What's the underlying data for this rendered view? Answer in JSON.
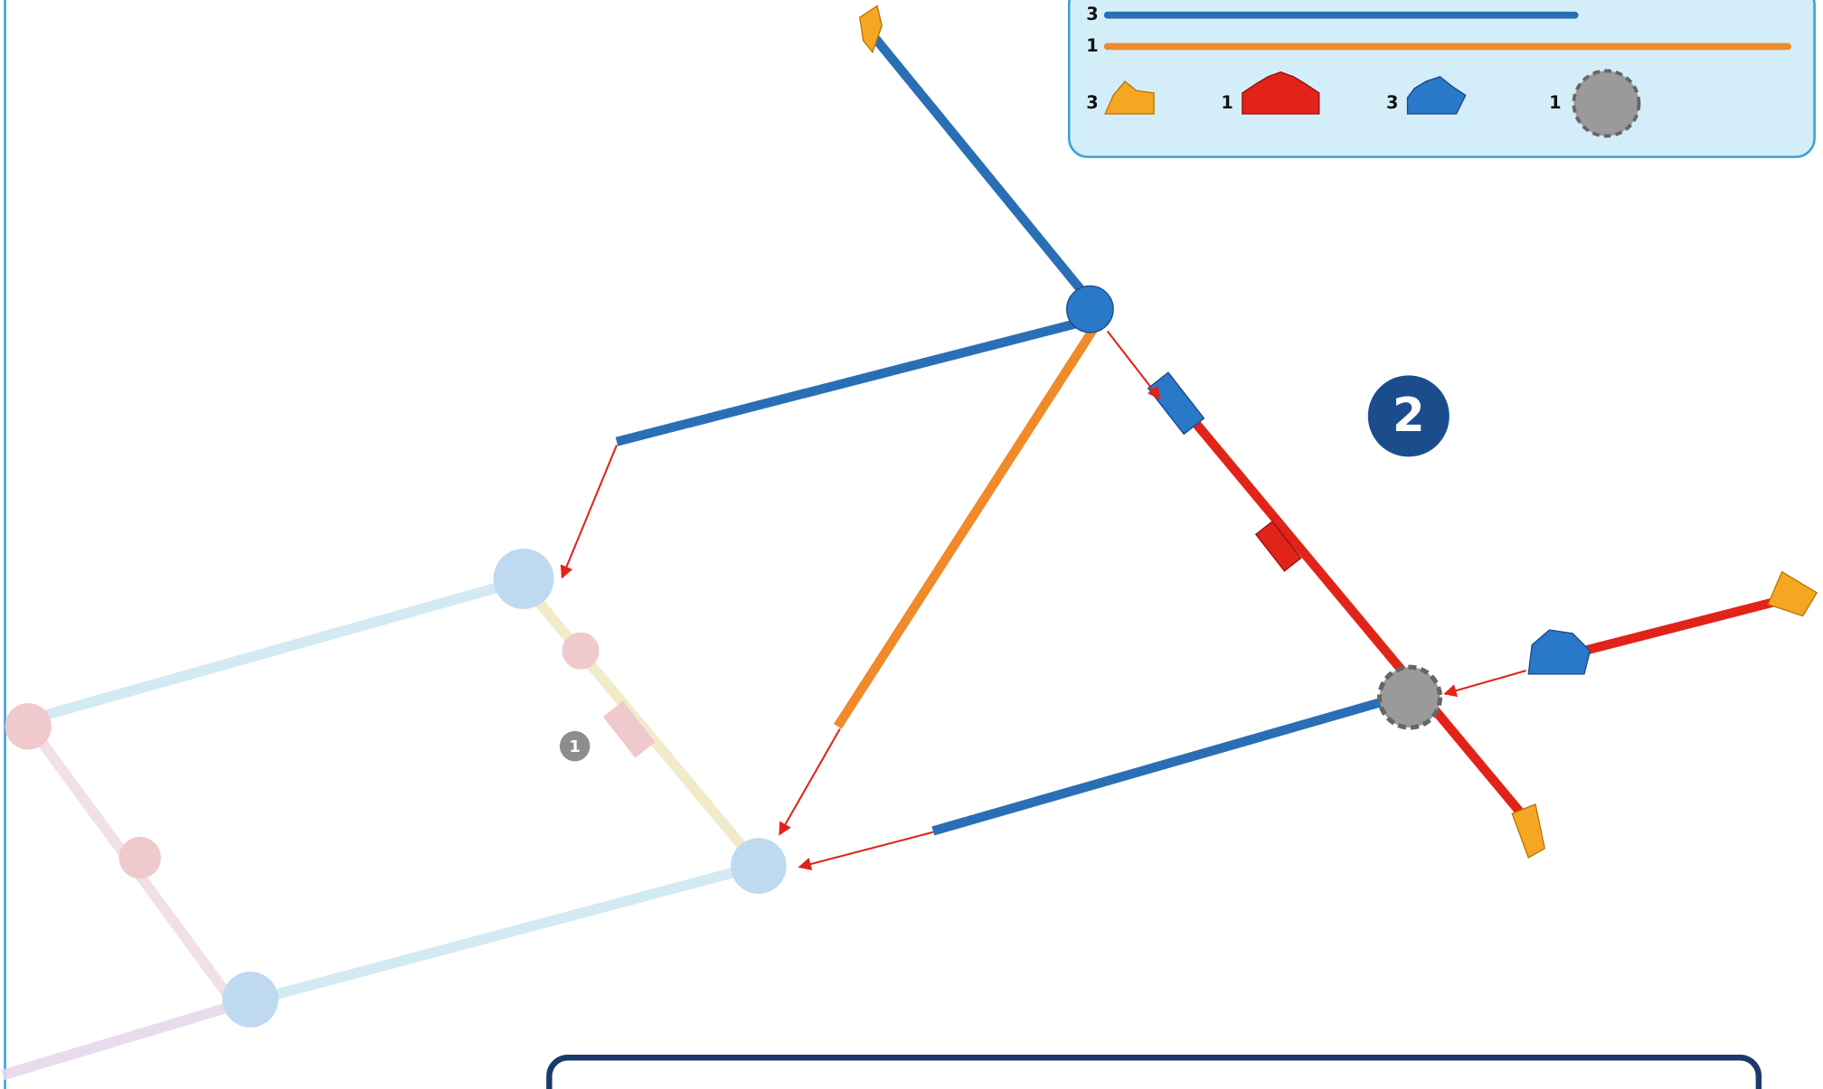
{
  "parts_list": {
    "rods": [
      {
        "count": "3"
      },
      {
        "count": "1"
      }
    ],
    "connectors": [
      {
        "count": "3"
      },
      {
        "count": "1"
      },
      {
        "count": "3"
      },
      {
        "count": "1"
      }
    ]
  },
  "step": {
    "number": "2",
    "sub_step": "1"
  }
}
